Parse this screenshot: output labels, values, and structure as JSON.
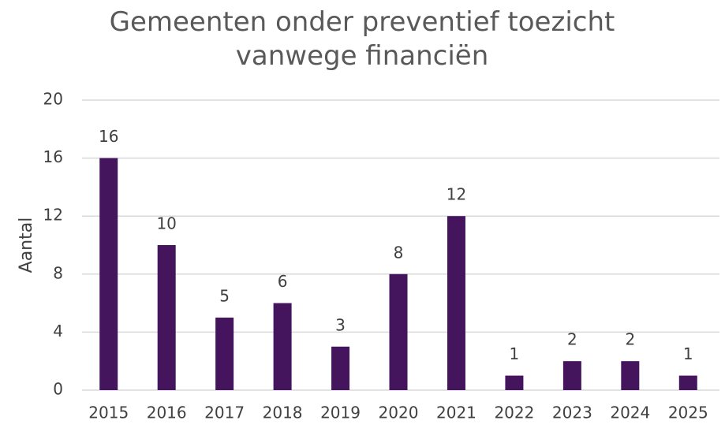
{
  "chart_data": {
    "type": "bar",
    "title": "Gemeenten onder preventief toezicht vanwege financiën",
    "ylabel": "Aantal",
    "categories": [
      "2015",
      "2016",
      "2017",
      "2018",
      "2019",
      "2020",
      "2021",
      "2022",
      "2023",
      "2024",
      "2025"
    ],
    "values": [
      16,
      10,
      5,
      6,
      3,
      8,
      12,
      1,
      2,
      2,
      1
    ],
    "color": "#44155c",
    "ylim": [
      0,
      20
    ],
    "yticks": [
      0,
      4,
      8,
      12,
      16,
      20
    ],
    "grid": true
  }
}
